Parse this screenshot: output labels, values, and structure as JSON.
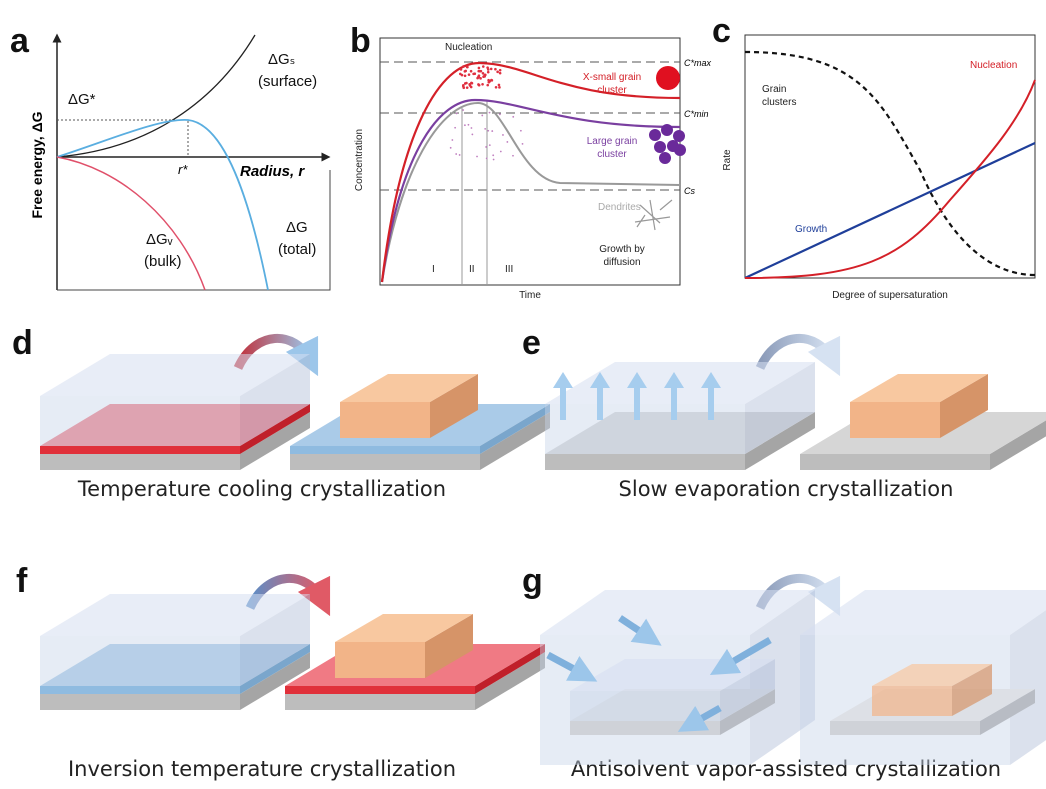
{
  "panels": {
    "a": {
      "label": "a",
      "y_axis": "Free energy, ΔG",
      "x_axis": "Radius, r",
      "barrier": "ΔG*",
      "critical_radius": "r*",
      "surface": [
        "ΔGₛ",
        "(surface)"
      ],
      "bulk": [
        "ΔGᵥ",
        "(bulk)"
      ],
      "total": [
        "ΔG",
        "(total)"
      ]
    },
    "b": {
      "label": "b",
      "y_axis": "Concentration",
      "x_axis": "Time",
      "nucleation": "Nucleation",
      "xsmall": [
        "X-small grain",
        "cluster"
      ],
      "large": [
        "Large grain",
        "cluster"
      ],
      "dendrites": "Dendrites",
      "growth": [
        "Growth by",
        "diffusion"
      ],
      "stages": [
        "I",
        "II",
        "III"
      ],
      "c_max": "C*max",
      "c_min": "C*min",
      "c_s": "Cs"
    },
    "c": {
      "label": "c",
      "y_axis": "Rate",
      "x_axis": "Degree of supersaturation",
      "clusters": [
        "Grain",
        "clusters"
      ],
      "nucleation": "Nucleation",
      "growth": "Growth"
    },
    "d": {
      "label": "d",
      "caption": "Temperature cooling crystallization"
    },
    "e": {
      "label": "e",
      "caption": "Slow evaporation crystallization"
    },
    "f": {
      "label": "f",
      "caption": "Inversion temperature crystallization"
    },
    "g": {
      "label": "g",
      "caption": "Antisolvent vapor-assisted crystallization"
    }
  }
}
